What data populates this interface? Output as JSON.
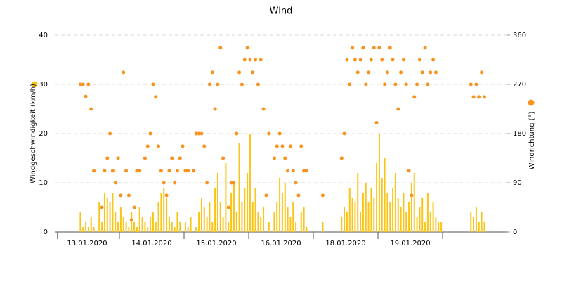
{
  "chart_data": {
    "type": "bar",
    "title": "Wind",
    "y_label": "Windgeschwindigkeit (km/h)",
    "y2_label": "Windrichtung (°)",
    "ylim": [
      0,
      40
    ],
    "yticks": [
      0,
      10,
      20,
      30,
      40
    ],
    "y2lim": [
      0,
      360
    ],
    "y2ticks": [
      0,
      90,
      180,
      270,
      360
    ],
    "grid": true,
    "xticks": [
      1,
      24,
      48,
      72,
      96,
      120,
      144
    ],
    "day_labels": [
      {
        "value": 12,
        "label": "13.01.2020"
      },
      {
        "value": 36,
        "label": "14.01.2020"
      },
      {
        "value": 60,
        "label": "15.01.2020"
      },
      {
        "value": 84,
        "label": "16.01.2020"
      },
      {
        "value": 108,
        "label": "18.01.2020"
      },
      {
        "value": 132,
        "label": "19.01.2020"
      }
    ],
    "series": [
      {
        "name": "Windgeschwindigkeit (km/h)",
        "type": "bar",
        "color": "#f9c516",
        "values": [
          null,
          null,
          null,
          null,
          null,
          null,
          null,
          null,
          null,
          4,
          1,
          2,
          1,
          3,
          1,
          0,
          6,
          2,
          8,
          7,
          6,
          8,
          4,
          2,
          5,
          3,
          2,
          1,
          4,
          2,
          1,
          5,
          3,
          2,
          1,
          3,
          4,
          2,
          6,
          8,
          9,
          7,
          3,
          2,
          1,
          4,
          2,
          0,
          2,
          1,
          3,
          0,
          1,
          4,
          7,
          5,
          3,
          6,
          2,
          9,
          12,
          6,
          3,
          14,
          2,
          8,
          10,
          4,
          18,
          6,
          9,
          12,
          20,
          6,
          9,
          4,
          3,
          5,
          0,
          2,
          null,
          4,
          6,
          11,
          8,
          10,
          5,
          3,
          6,
          2,
          0,
          4,
          5,
          1,
          null,
          null,
          null,
          null,
          null,
          2,
          null,
          null,
          null,
          null,
          null,
          null,
          3,
          5,
          4,
          9,
          7,
          6,
          12,
          4,
          8,
          10,
          6,
          9,
          7,
          14,
          20,
          11,
          15,
          8,
          6,
          9,
          12,
          7,
          5,
          8,
          4,
          6,
          10,
          12,
          3,
          5,
          7,
          2,
          8,
          4,
          6,
          3,
          2,
          2,
          null,
          null,
          null,
          null,
          null,
          null,
          null,
          null,
          null,
          null,
          4,
          3,
          5,
          2,
          4,
          2,
          null,
          null,
          null,
          null,
          null,
          null,
          null,
          null
        ]
      },
      {
        "name": "Windrichtung (°)",
        "type": "scatter",
        "axis": "y2",
        "color": "#f7931e",
        "values": [
          null,
          null,
          null,
          null,
          null,
          null,
          null,
          null,
          null,
          270,
          270,
          248,
          270,
          225,
          112,
          null,
          null,
          45,
          112,
          135,
          180,
          112,
          90,
          135,
          67,
          292,
          112,
          67,
          22,
          45,
          112,
          112,
          null,
          135,
          157,
          180,
          270,
          247,
          157,
          112,
          90,
          67,
          112,
          135,
          90,
          112,
          135,
          157,
          112,
          112,
          null,
          112,
          180,
          180,
          180,
          157,
          90,
          270,
          292,
          225,
          270,
          337,
          135,
          null,
          45,
          90,
          90,
          180,
          292,
          270,
          315,
          337,
          315,
          292,
          315,
          270,
          315,
          225,
          67,
          180,
          null,
          135,
          157,
          180,
          157,
          135,
          112,
          157,
          112,
          90,
          67,
          157,
          112,
          112,
          null,
          null,
          null,
          null,
          null,
          67,
          null,
          null,
          null,
          null,
          null,
          null,
          135,
          180,
          315,
          270,
          337,
          315,
          292,
          315,
          337,
          270,
          292,
          315,
          337,
          200,
          337,
          315,
          270,
          292,
          337,
          315,
          270,
          225,
          292,
          315,
          270,
          112,
          67,
          247,
          270,
          315,
          292,
          337,
          270,
          292,
          315,
          292,
          null,
          null,
          null,
          null,
          null,
          null,
          null,
          null,
          null,
          null,
          null,
          null,
          270,
          247,
          270,
          247,
          292,
          247,
          null,
          null,
          null,
          null,
          null,
          null,
          null,
          null
        ]
      }
    ]
  }
}
